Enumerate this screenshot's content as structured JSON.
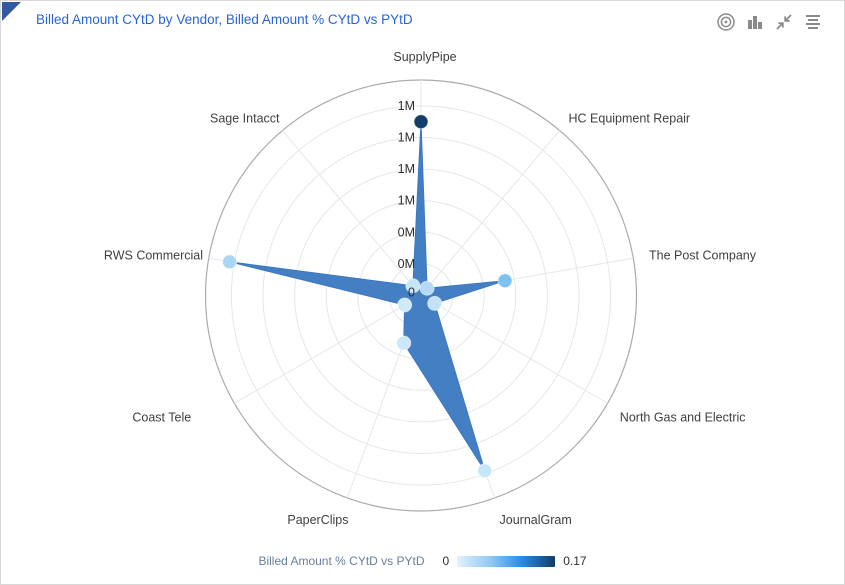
{
  "header": {
    "title": "Billed Amount CYtD by Vendor, Billed Amount % CYtD vs PYtD",
    "title_color": "#2a64d4",
    "corner_flag_color": "#35599f",
    "icon_color": "#8a8a8a",
    "icons": [
      {
        "name": "radar-chart-view-icon",
        "glyph": "concentric-circles-target"
      },
      {
        "name": "bar-chart-view-icon",
        "glyph": "vertical-bars"
      },
      {
        "name": "collapse-icon",
        "glyph": "arrows-pointing-inward"
      },
      {
        "name": "menu-icon",
        "glyph": "hamburger-lines"
      }
    ]
  },
  "chart_data": {
    "type": "radar",
    "title": "Billed Amount CYtD by Vendor, Billed Amount % CYtD vs PYtD",
    "categories": [
      "SupplyPipe",
      "HC Equipment Repair",
      "The Post Company",
      "North Gas and Electric",
      "JournalGram",
      "PaperClips",
      "Coast Tele",
      "RWS Commercial",
      "Sage Intacct"
    ],
    "series": [
      {
        "name": "Billed Amount CYtD",
        "unit": "M",
        "values": [
          1.1,
          0.06,
          0.54,
          0.1,
          1.18,
          0.32,
          0.12,
          1.23,
          0.08
        ]
      },
      {
        "name": "Billed Amount % CYtD vs PYtD",
        "encoding": "point color gradient, values estimated from color",
        "values": [
          0.17,
          0.03,
          0.07,
          0.02,
          0.01,
          0.01,
          0.01,
          0.03,
          0.01
        ]
      }
    ],
    "point_colors": [
      "#133e6a",
      "#b3d9f4",
      "#7fc1ef",
      "#c3e2f7",
      "#c6e6f9",
      "#cde8fa",
      "#cfeafa",
      "#abd6f3",
      "#c7e5f8"
    ],
    "polygon_fill": "#3a78c0",
    "radial_axis": {
      "min": 0,
      "max": 1.4,
      "tick_interval": 0.2,
      "tick_labels": [
        "0",
        "0M",
        "0M",
        "1M",
        "1M",
        "1M",
        "1M"
      ],
      "tick_label_color": "#2e2e2e"
    },
    "start_angle_deg": 90,
    "direction": "clockwise",
    "grid": {
      "rings": true,
      "spokes": true,
      "ring_color": "#e4e7ec",
      "boundary_color": "#a9abb0",
      "category_label_color": "#3f3f3f"
    }
  },
  "legend": {
    "label": "Billed Amount % CYtD vs PYtD",
    "min_label": "0",
    "max_label": "0.17",
    "gradient_stops": [
      "#e4f1fc",
      "#8ec8f2",
      "#2b8fe8",
      "#123c68"
    ]
  }
}
